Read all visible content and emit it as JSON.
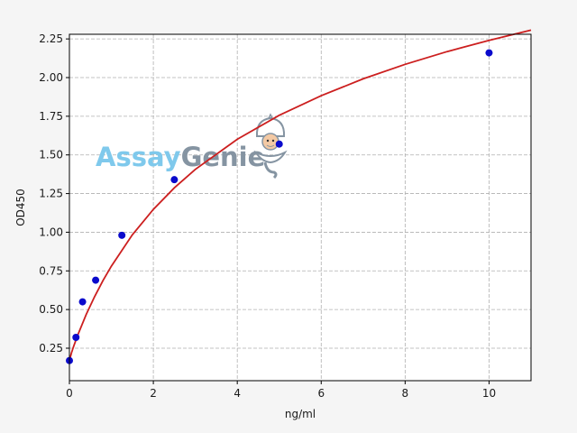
{
  "chart_data": {
    "type": "scatter",
    "xlabel": "ng/ml",
    "ylabel": "OD450",
    "xlim": [
      0,
      11
    ],
    "ylim": [
      0.04,
      2.28
    ],
    "xticks": [
      "0",
      "2",
      "4",
      "6",
      "8",
      "10"
    ],
    "yticks": [
      "0.25",
      "0.50",
      "0.75",
      "1.00",
      "1.25",
      "1.50",
      "1.75",
      "2.00",
      "2.25"
    ],
    "grid": true,
    "points": [
      {
        "x": 0,
        "y": 0.17
      },
      {
        "x": 0.156,
        "y": 0.32
      },
      {
        "x": 0.313,
        "y": 0.55
      },
      {
        "x": 0.625,
        "y": 0.69
      },
      {
        "x": 1.25,
        "y": 0.98
      },
      {
        "x": 2.5,
        "y": 1.34
      },
      {
        "x": 5,
        "y": 1.57
      },
      {
        "x": 10,
        "y": 2.16
      }
    ],
    "fit_curve": {
      "x": [
        0,
        0.05,
        0.1,
        0.2,
        0.4,
        0.6,
        0.8,
        1,
        1.5,
        2,
        2.5,
        3,
        4,
        5,
        6,
        7,
        8,
        9,
        10,
        11
      ],
      "y": [
        0.17,
        0.22,
        0.262,
        0.336,
        0.468,
        0.583,
        0.687,
        0.78,
        0.983,
        1.148,
        1.287,
        1.406,
        1.601,
        1.756,
        1.883,
        1.992,
        2.086,
        2.168,
        2.241,
        2.307
      ]
    },
    "colors": {
      "points": "#0a0acc",
      "curve": "#cc1f1f",
      "grid": "#b0b0b0"
    }
  },
  "watermark": {
    "part1": "Assay",
    "part2": "Genie",
    "icon": "genie-mascot-icon"
  }
}
